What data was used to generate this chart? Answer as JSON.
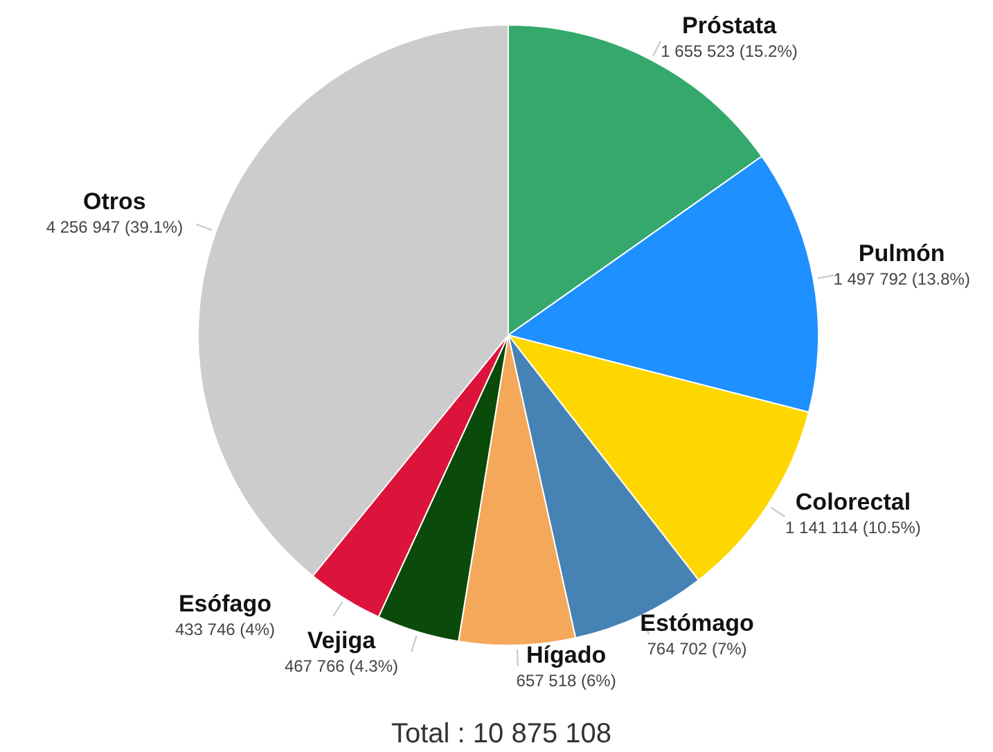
{
  "chart_data": {
    "type": "pie",
    "categories": [
      "Próstata",
      "Pulmón",
      "Colorectal",
      "Estómago",
      "Hígado",
      "Vejiga",
      "Esófago",
      "Otros"
    ],
    "values": [
      1655523,
      1497792,
      1141114,
      764702,
      657518,
      467766,
      433746,
      4256947
    ],
    "colors": [
      "#35a86c",
      "#1e90ff",
      "#ffd700",
      "#4682b4",
      "#f4a85a",
      "#0a4a0a",
      "#dc143c",
      "#cccccc"
    ],
    "value_labels": [
      "1 655 523 (15.2%)",
      "1 497 792 (13.8%)",
      "1 141 114 (10.5%)",
      "764 702 (7%)",
      "657 518 (6%)",
      "467 766 (4.3%)",
      "433 746 (4%)",
      "4 256 947 (39.1%)"
    ],
    "annotations": [
      "Total : 10 875 108"
    ]
  }
}
